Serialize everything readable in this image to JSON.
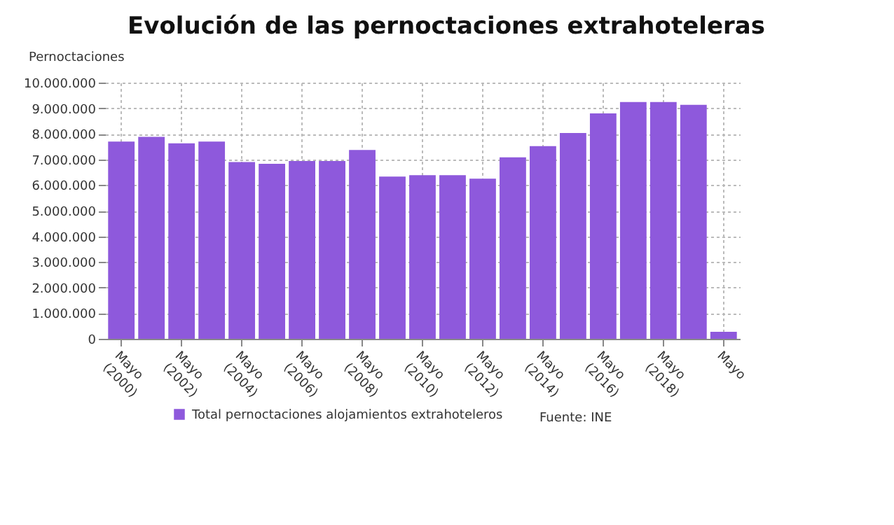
{
  "chart_data": {
    "type": "bar",
    "title": "Evolución de las pernoctaciones extrahoteleras",
    "ylabel": "Pernoctaciones",
    "categories": [
      "Mayo (2000)",
      null,
      "Mayo (2002)",
      null,
      "Mayo (2004)",
      null,
      "Mayo (2006)",
      null,
      "Mayo (2008)",
      null,
      "Mayo (2010)",
      null,
      "Mayo (2012)",
      null,
      "Mayo (2014)",
      null,
      "Mayo (2016)",
      null,
      "Mayo (2018)",
      null,
      "Mayo"
    ],
    "series": [
      {
        "name": "Total pernoctaciones alojamientos extrahoteleros",
        "color": "#8e59dc",
        "values": [
          7700000,
          7880000,
          7630000,
          7700000,
          6900000,
          6830000,
          6940000,
          6940000,
          7370000,
          6330000,
          6390000,
          6390000,
          6250000,
          7080000,
          7520000,
          8030000,
          8800000,
          9240000,
          9240000,
          9130000,
          270000
        ]
      }
    ],
    "ylim": [
      0,
      10000000
    ],
    "yticks": [
      0,
      {
        "value": 1000000,
        "label": "1.000.000"
      },
      {
        "value": 2000000,
        "label": "2.000.000"
      },
      {
        "value": 3000000,
        "label": "3.000.000"
      },
      {
        "value": 4000000,
        "label": "4.000.000"
      },
      {
        "value": 5000000,
        "label": "5.000.000"
      },
      {
        "value": 6000000,
        "label": "6.000.000"
      },
      {
        "value": 7000000,
        "label": "7.000.000"
      },
      {
        "value": 8000000,
        "label": "8.000.000"
      },
      {
        "value": 9000000,
        "label": "9.000.000"
      },
      {
        "value": 10000000,
        "label": "10.000.000"
      }
    ],
    "grid": true,
    "legend": "bottom",
    "annotations": [
      "Fuente: INE"
    ]
  }
}
